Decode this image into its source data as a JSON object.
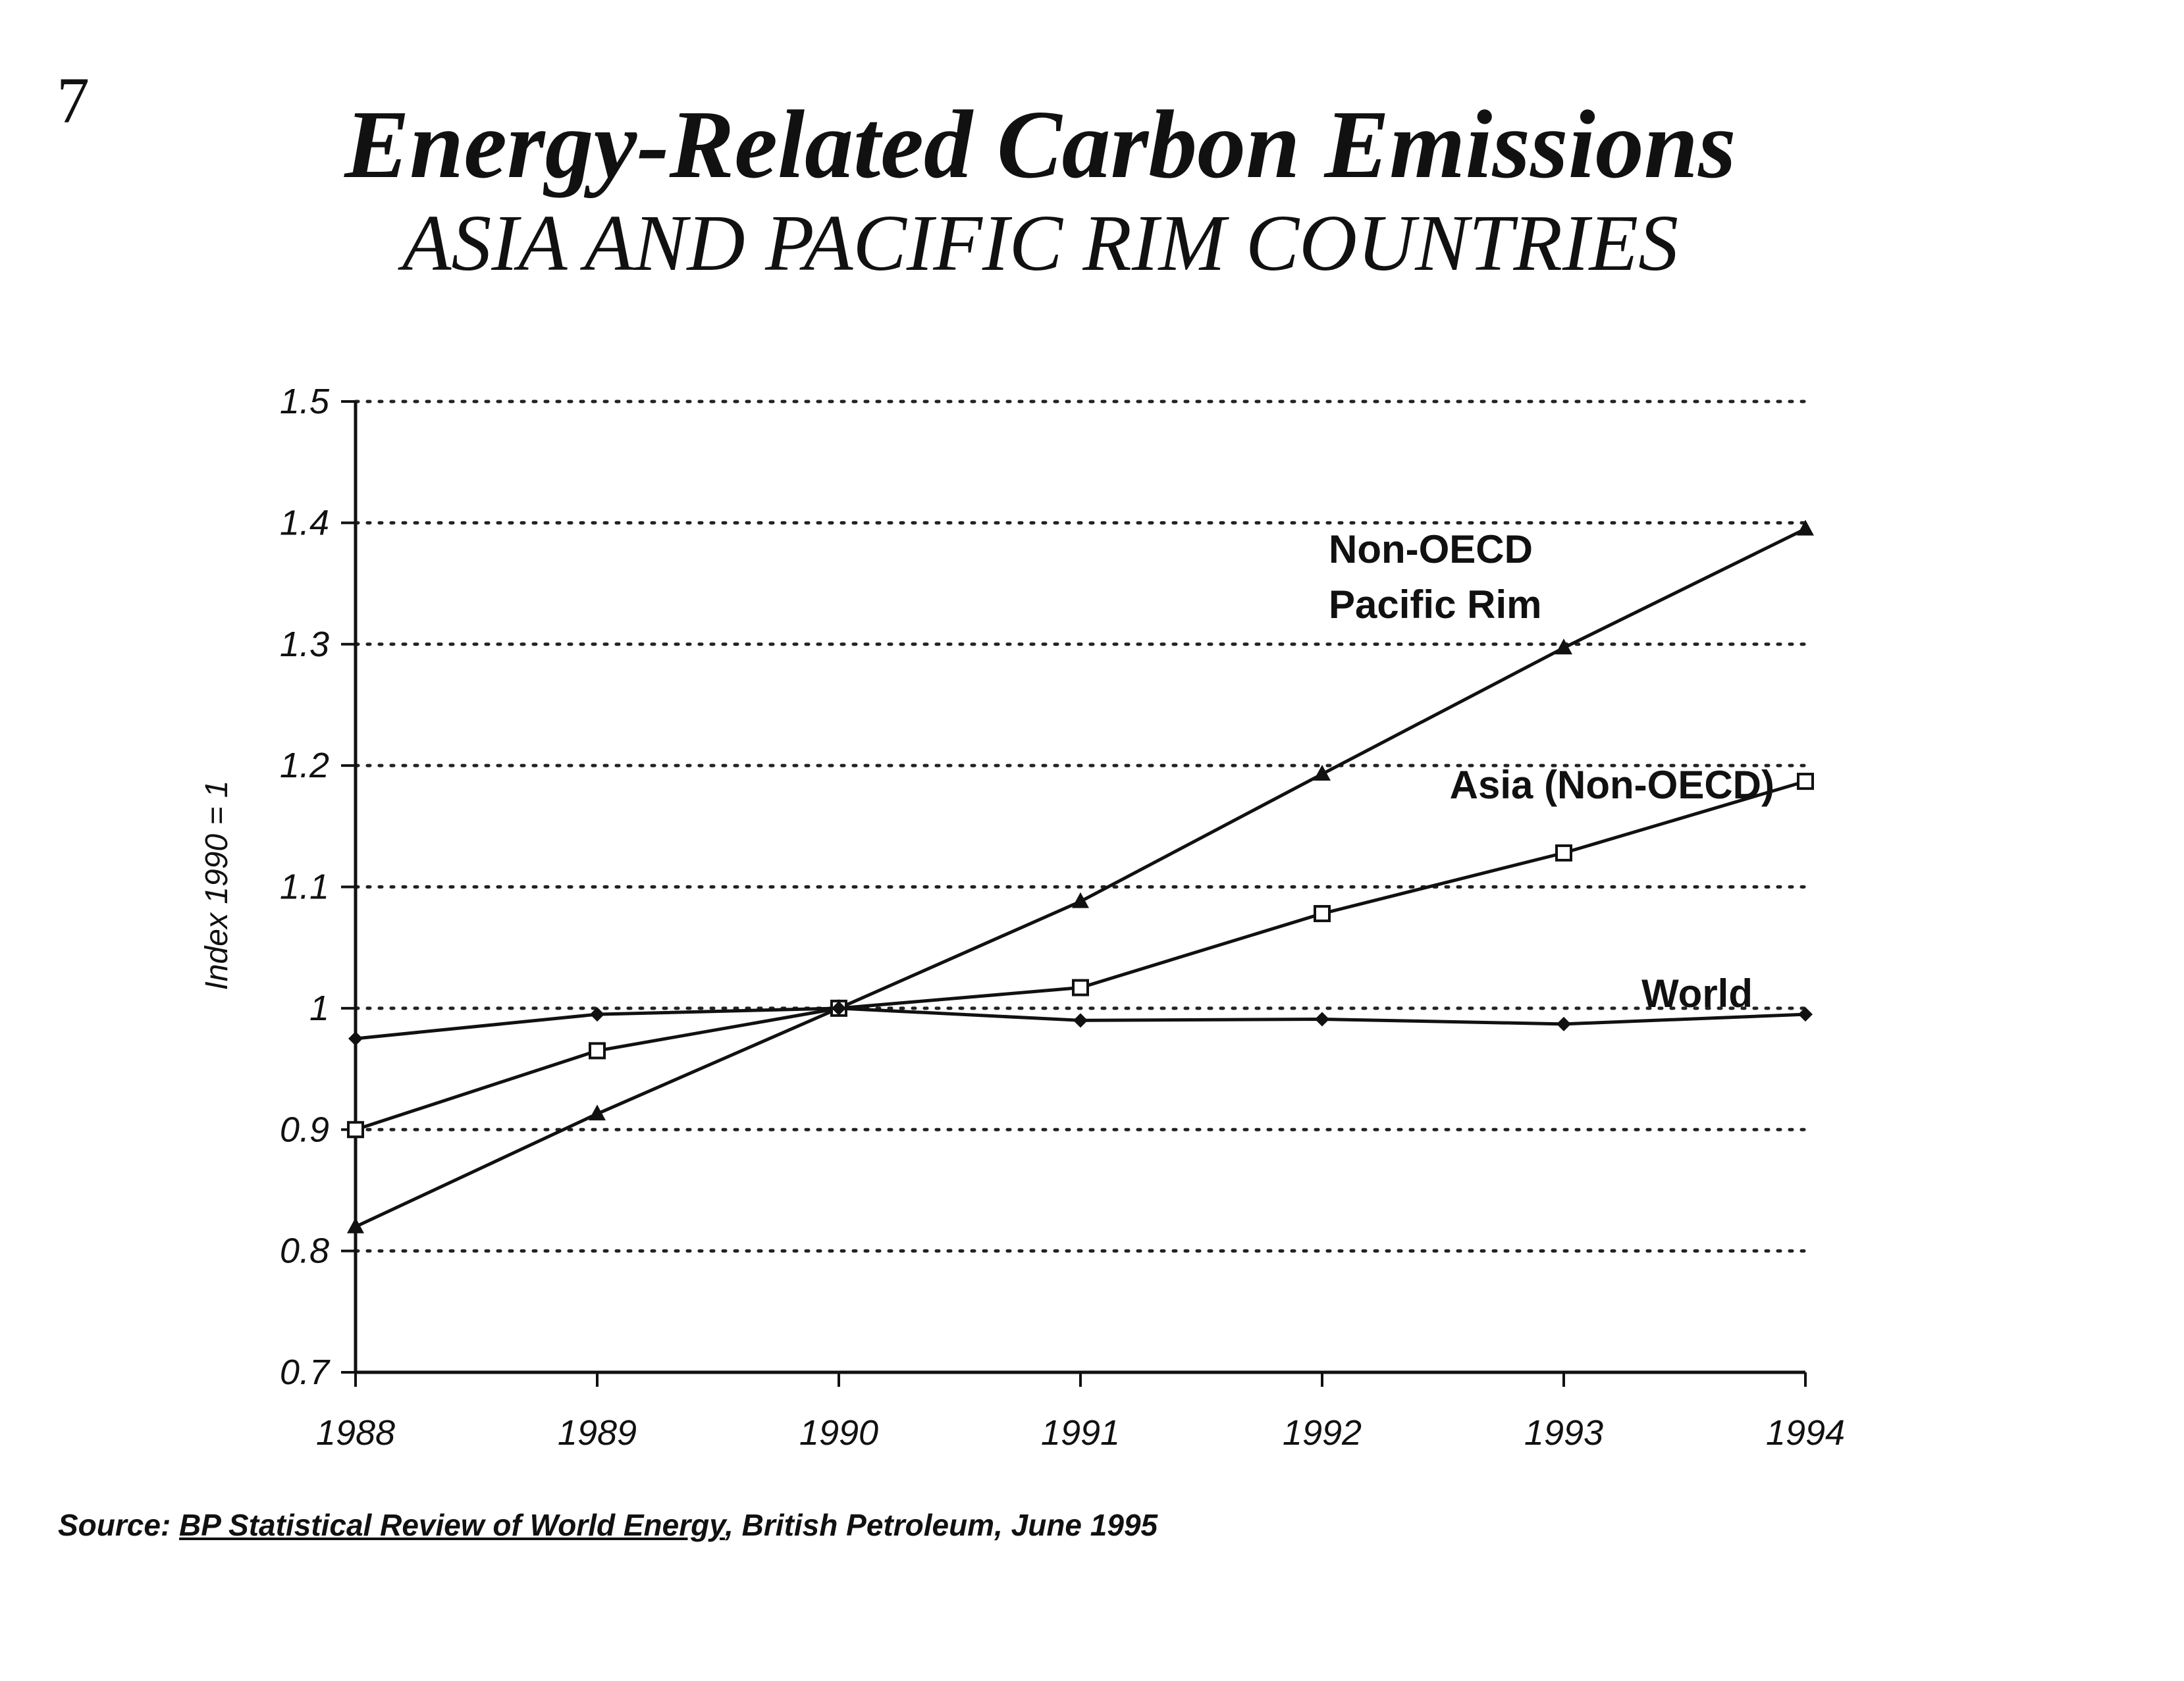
{
  "page_number": "7",
  "chart_data": {
    "type": "line",
    "title": "Energy-Related Carbon Emissions",
    "subtitle": "ASIA AND PACIFIC RIM COUNTRIES",
    "ylabel": "Index 1990 = 1",
    "xlabel": "",
    "x": [
      "1988",
      "1989",
      "1990",
      "1991",
      "1992",
      "1993",
      "1994"
    ],
    "ylim": [
      0.7,
      1.5
    ],
    "yticks": [
      "0.7",
      "0.8",
      "0.9",
      "1",
      "1.1",
      "1.2",
      "1.3",
      "1.4",
      "1.5"
    ],
    "grid": "horizontal dotted",
    "series": [
      {
        "name": "Non-OECD Pacific Rim",
        "label_lines": [
          "Non-OECD",
          "Pacific Rim"
        ],
        "marker": "triangle",
        "values": [
          0.82,
          0.913,
          1.0,
          1.088,
          1.193,
          1.297,
          1.395
        ]
      },
      {
        "name": "Asia (Non-OECD)",
        "label_lines": [
          "Asia (Non-OECD)"
        ],
        "marker": "square",
        "values": [
          0.9,
          0.965,
          1.0,
          1.017,
          1.078,
          1.128,
          1.187
        ]
      },
      {
        "name": "World",
        "label_lines": [
          "World"
        ],
        "marker": "diamond",
        "values": [
          0.975,
          0.995,
          1.0,
          0.99,
          0.991,
          0.987,
          0.995
        ]
      }
    ],
    "colors": {
      "line": "#111111",
      "grid": "#222222"
    }
  },
  "source": {
    "prefix": "Source: ",
    "reference": "BP Statistical Review of World Energy",
    "suffix": ", British Petroleum, June 1995"
  }
}
